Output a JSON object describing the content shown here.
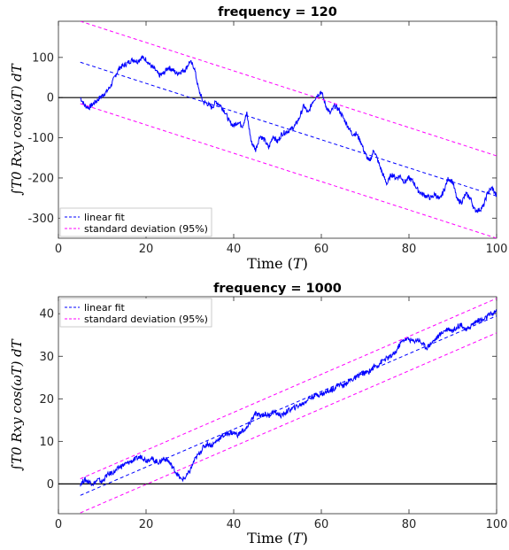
{
  "chart_data": [
    {
      "type": "line",
      "title": "frequency = 120",
      "xlabel": "Time (T)",
      "ylabel": "∫T0 Rxy cos(ωT) dT",
      "xlim": [
        0,
        100
      ],
      "ylim": [
        -350,
        190
      ],
      "xticks": [
        0,
        20,
        40,
        60,
        80,
        100
      ],
      "yticks": [
        -300,
        -200,
        -100,
        0,
        100
      ],
      "legend_position": "bottom-left",
      "legend": [
        "linear fit",
        "standard deviation (95%)"
      ],
      "zero_line": 0,
      "series": [
        {
          "name": "",
          "color": "#0000ff",
          "style": "solid",
          "x": [
            5,
            6,
            7,
            8,
            9,
            10,
            11,
            12,
            13,
            14,
            15,
            16,
            17,
            18,
            19,
            20,
            21,
            22,
            23,
            24,
            25,
            26,
            27,
            28,
            29,
            30,
            31,
            32,
            33,
            34,
            35,
            36,
            37,
            38,
            39,
            40,
            41,
            42,
            43,
            44,
            45,
            46,
            47,
            48,
            49,
            50,
            51,
            52,
            53,
            54,
            55,
            56,
            57,
            58,
            59,
            60,
            61,
            62,
            63,
            64,
            65,
            66,
            67,
            68,
            69,
            70,
            71,
            72,
            73,
            74,
            75,
            76,
            77,
            78,
            79,
            80,
            81,
            82,
            83,
            84,
            85,
            86,
            87,
            88,
            89,
            90,
            91,
            92,
            93,
            94,
            95,
            96,
            97,
            98,
            99,
            100
          ],
          "y": [
            0,
            -20,
            -25,
            -15,
            -5,
            5,
            15,
            30,
            55,
            75,
            80,
            88,
            95,
            90,
            100,
            95,
            80,
            70,
            55,
            60,
            75,
            70,
            60,
            65,
            70,
            90,
            75,
            20,
            -10,
            -15,
            -25,
            -10,
            -20,
            -35,
            -60,
            -70,
            -60,
            -70,
            -40,
            -110,
            -130,
            -95,
            -105,
            -125,
            -95,
            -110,
            -90,
            -85,
            -80,
            -70,
            -50,
            -20,
            -40,
            -10,
            5,
            15,
            -20,
            -40,
            -20,
            -30,
            -50,
            -70,
            -90,
            -90,
            -110,
            -140,
            -160,
            -130,
            -160,
            -190,
            -215,
            -190,
            -200,
            -195,
            -210,
            -200,
            -210,
            -230,
            -240,
            -245,
            -250,
            -240,
            -255,
            -230,
            -200,
            -210,
            -255,
            -260,
            -240,
            -250,
            -280,
            -280,
            -270,
            -235,
            -225,
            -245
          ]
        },
        {
          "name": "linear fit",
          "color": "#0000ff",
          "style": "dashed",
          "x": [
            5,
            100
          ],
          "y": [
            88,
            -245
          ]
        },
        {
          "name": "standard deviation (95%)",
          "color": "#ff00ff",
          "style": "dashed",
          "x": [
            5,
            100
          ],
          "y": [
            190,
            -145
          ]
        },
        {
          "name": "",
          "color": "#ff00ff",
          "style": "dashed",
          "x": [
            5,
            100
          ],
          "y": [
            -15,
            -350
          ]
        }
      ]
    },
    {
      "type": "line",
      "title": "frequency = 1000",
      "xlabel": "Time (T)",
      "ylabel": "∫T0 Rxy cos(ωT) dT",
      "xlim": [
        0,
        100
      ],
      "ylim": [
        -7,
        44
      ],
      "xticks": [
        0,
        20,
        40,
        60,
        80,
        100
      ],
      "yticks": [
        0,
        10,
        20,
        30,
        40
      ],
      "legend_position": "top-left",
      "legend": [
        "linear fit",
        "standard deviation (95%)"
      ],
      "zero_line": 0,
      "series": [
        {
          "name": "",
          "color": "#0000ff",
          "style": "solid",
          "x": [
            5,
            6,
            7,
            8,
            9,
            10,
            11,
            12,
            13,
            14,
            15,
            16,
            17,
            18,
            19,
            20,
            21,
            22,
            23,
            24,
            25,
            26,
            27,
            28,
            29,
            30,
            31,
            32,
            33,
            34,
            35,
            36,
            37,
            38,
            39,
            40,
            41,
            42,
            43,
            44,
            45,
            46,
            47,
            48,
            49,
            50,
            51,
            52,
            53,
            54,
            55,
            56,
            57,
            58,
            59,
            60,
            61,
            62,
            63,
            64,
            65,
            66,
            67,
            68,
            69,
            70,
            71,
            72,
            73,
            74,
            75,
            76,
            77,
            78,
            79,
            80,
            81,
            82,
            83,
            84,
            85,
            86,
            87,
            88,
            89,
            90,
            91,
            92,
            93,
            94,
            95,
            96,
            97,
            98,
            99,
            100
          ],
          "y": [
            0,
            1,
            0.5,
            0,
            1,
            0.5,
            2,
            2.5,
            3,
            4,
            4.5,
            5,
            5.5,
            6,
            6.5,
            5.5,
            6,
            5.5,
            5,
            6,
            5.5,
            4,
            2.5,
            1,
            1.5,
            3,
            5.5,
            7,
            8.5,
            9.5,
            9,
            10,
            11,
            11.5,
            12,
            12,
            11.5,
            12.5,
            13,
            15,
            16.5,
            16,
            16.5,
            16,
            17,
            16.5,
            16,
            17,
            17.5,
            18,
            18.5,
            19,
            20,
            20.5,
            21,
            21,
            21.5,
            22,
            22.5,
            23.5,
            23,
            24,
            24.5,
            25,
            26,
            26,
            26.5,
            27.5,
            28,
            29,
            29.5,
            30,
            31,
            33,
            34,
            34,
            33.5,
            34,
            33,
            32,
            33,
            34,
            35,
            36,
            36.5,
            36,
            37,
            37.5,
            36,
            37,
            38,
            38.5,
            38.5,
            39.5,
            40,
            40.5
          ]
        },
        {
          "name": "linear fit",
          "color": "#0000ff",
          "style": "dashed",
          "x": [
            5,
            100
          ],
          "y": [
            -2.7,
            39.5
          ]
        },
        {
          "name": "standard deviation (95%)",
          "color": "#ff00ff",
          "style": "dashed",
          "x": [
            5,
            100
          ],
          "y": [
            1.2,
            43.6
          ]
        },
        {
          "name": "",
          "color": "#ff00ff",
          "style": "dashed",
          "x": [
            5,
            100
          ],
          "y": [
            -6.8,
            35.5
          ]
        }
      ]
    }
  ]
}
